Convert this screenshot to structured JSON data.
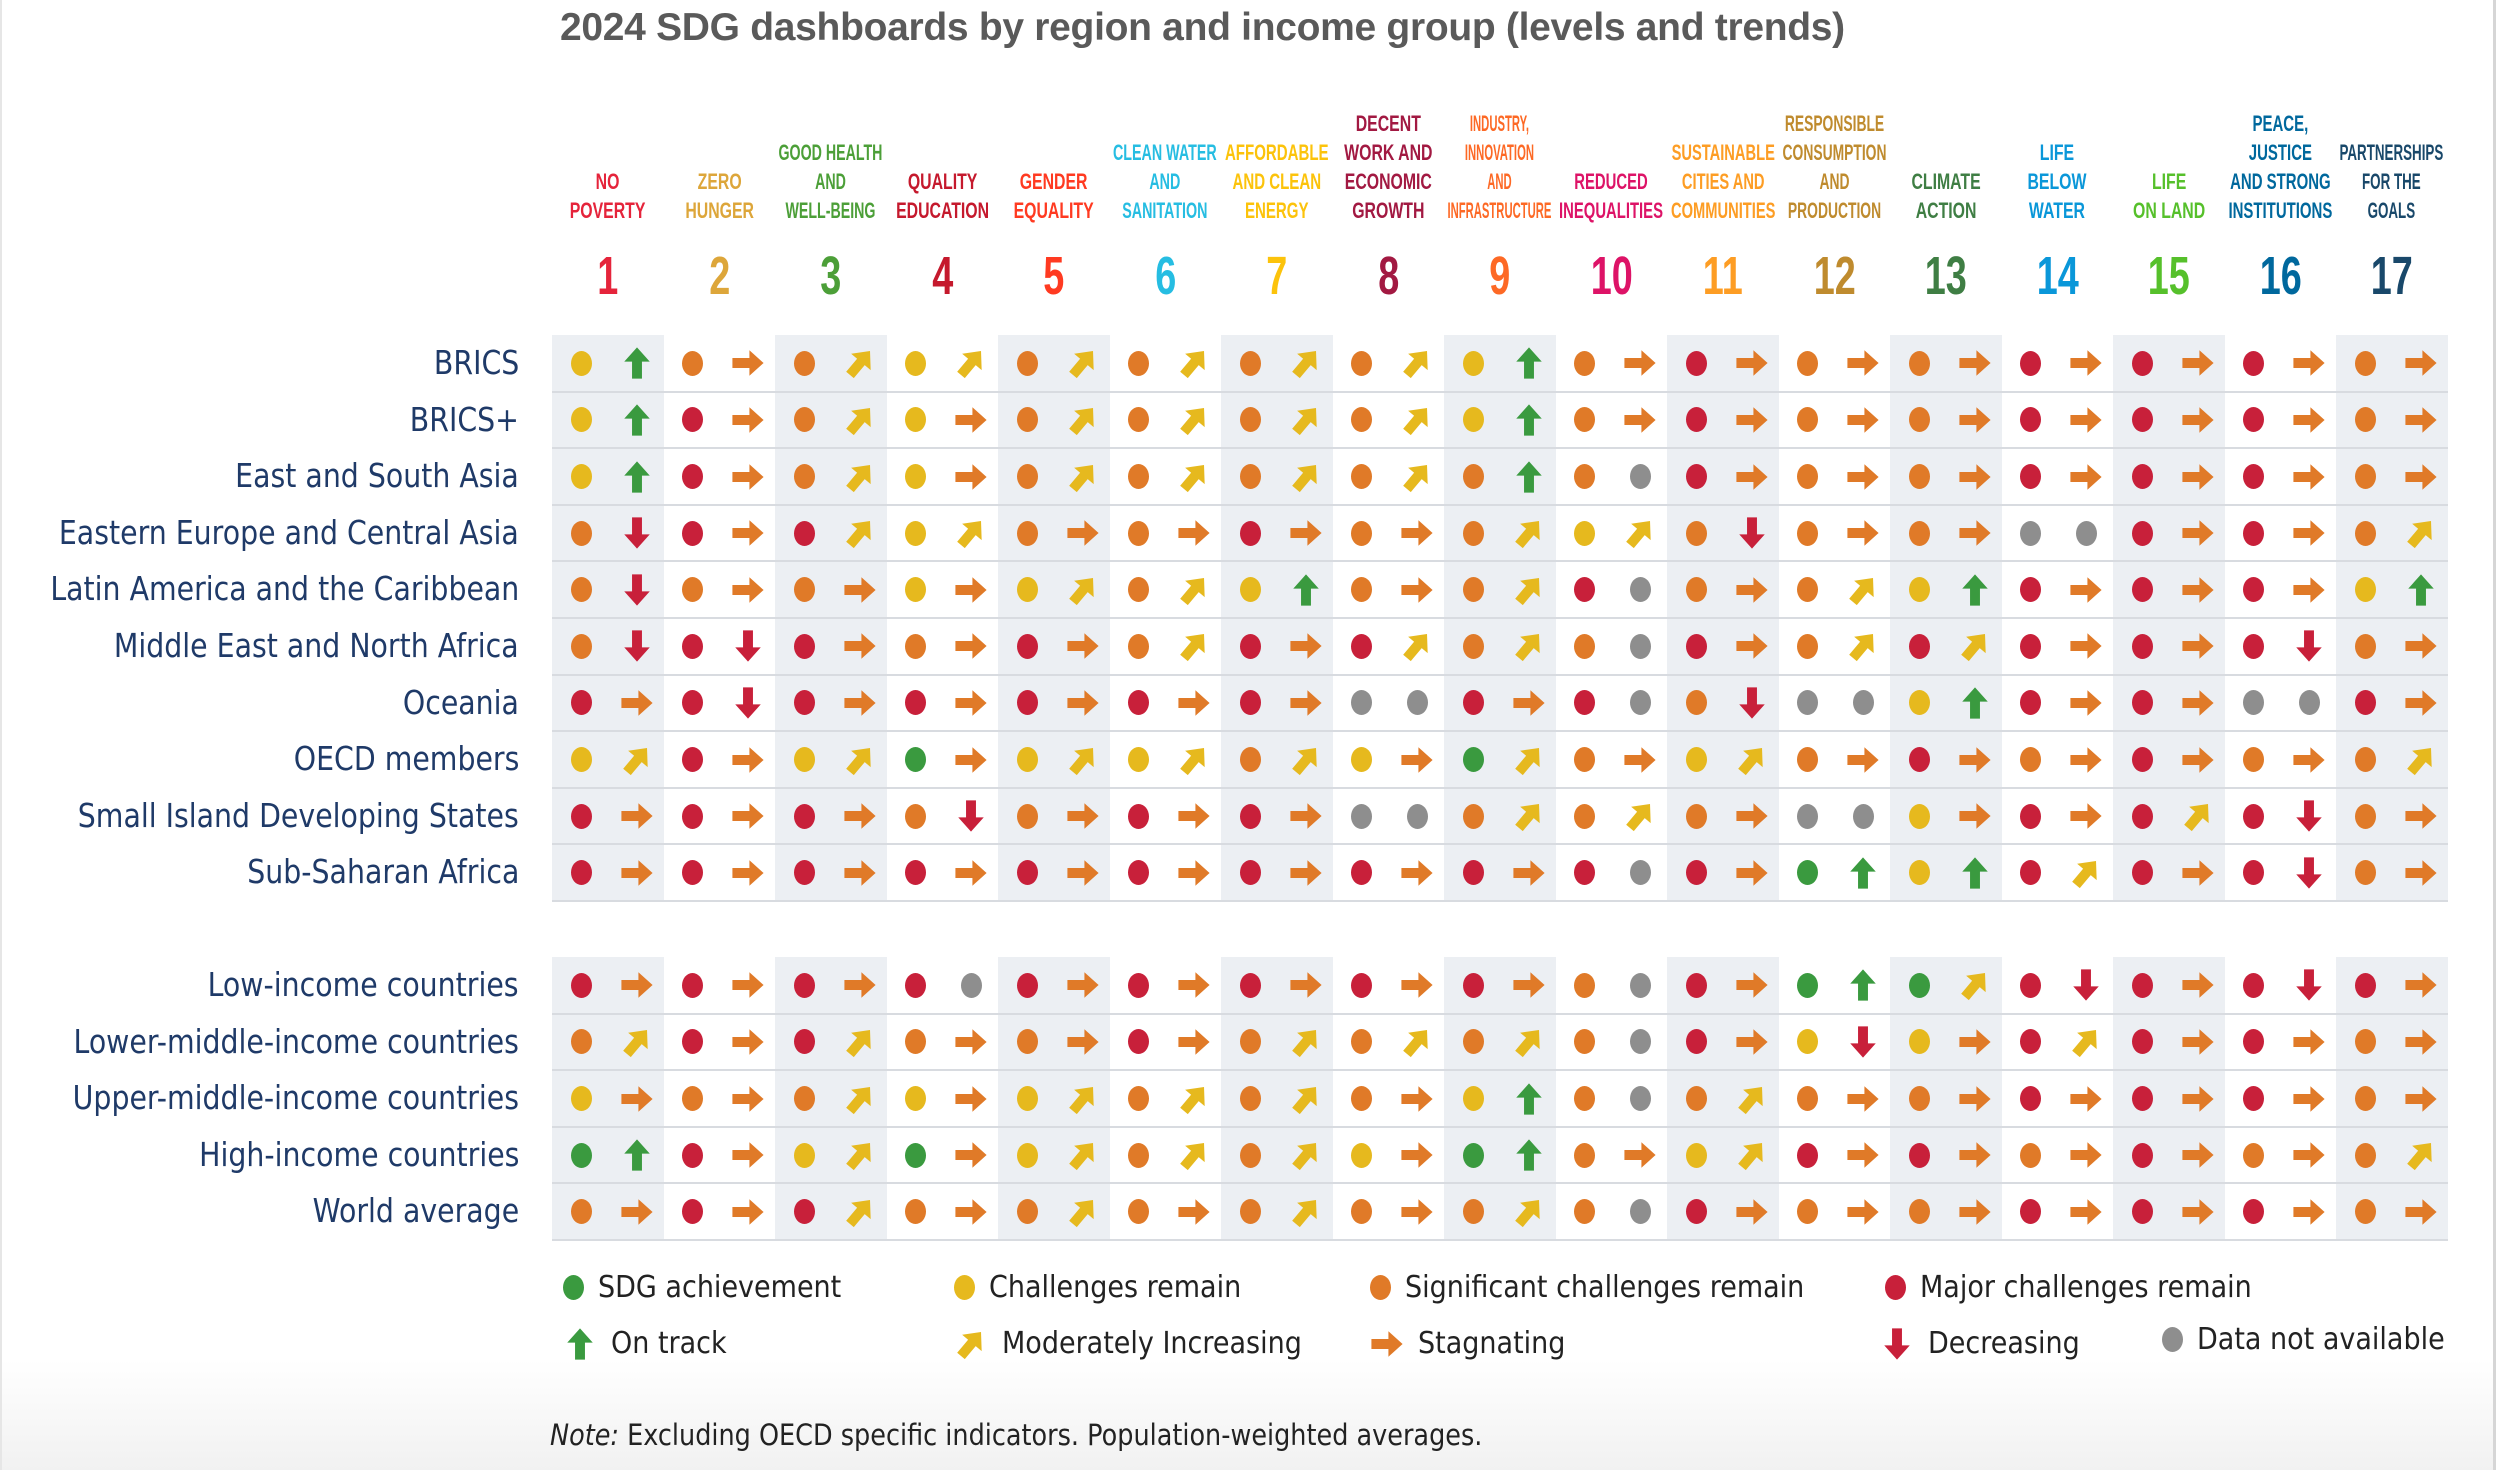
{
  "chart_data": {
    "type": "table",
    "title": "2024 SDG dashboards by region and income group (levels and trends)",
    "goals": [
      {
        "number": "1",
        "label": "NO\nPOVERTY",
        "color": "#e5243b"
      },
      {
        "number": "2",
        "label": "ZERO\nHUNGER",
        "color": "#dda63a"
      },
      {
        "number": "3",
        "label": "GOOD HEALTH\nAND\nWELL-BEING",
        "color": "#4c9f38"
      },
      {
        "number": "4",
        "label": "QUALITY\nEDUCATION",
        "color": "#c5192d"
      },
      {
        "number": "5",
        "label": "GENDER\nEQUALITY",
        "color": "#ff3a21"
      },
      {
        "number": "6",
        "label": "CLEAN WATER\nAND\nSANITATION",
        "color": "#26bde2"
      },
      {
        "number": "7",
        "label": "AFFORDABLE\nAND CLEAN\nENERGY",
        "color": "#fcc30b"
      },
      {
        "number": "8",
        "label": "DECENT\nWORK AND\nECONOMIC\nGROWTH",
        "color": "#a21942"
      },
      {
        "number": "9",
        "label": "INDUSTRY,\nINNOVATION\nAND\nINFRASTRUCTURE",
        "color": "#fd6925"
      },
      {
        "number": "10",
        "label": "REDUCED\nINEQUALITIES",
        "color": "#dd1367"
      },
      {
        "number": "11",
        "label": "SUSTAINABLE\nCITIES AND\nCOMMUNITIES",
        "color": "#fd9d24"
      },
      {
        "number": "12",
        "label": "RESPONSIBLE\nCONSUMPTION\nAND\nPRODUCTION",
        "color": "#bf8b2e"
      },
      {
        "number": "13",
        "label": "CLIMATE\nACTION",
        "color": "#3f7e44"
      },
      {
        "number": "14",
        "label": "LIFE\nBELOW\nWATER",
        "color": "#0a97d9"
      },
      {
        "number": "15",
        "label": "LIFE\nON LAND",
        "color": "#56c02b"
      },
      {
        "number": "16",
        "label": "PEACE,\nJUSTICE\nAND STRONG\nINSTITUTIONS",
        "color": "#00689d"
      },
      {
        "number": "17",
        "label": "PARTNERSHIPS\nFOR THE\nGOALS",
        "color": "#19486a"
      }
    ],
    "status_codes": {
      "G": "SDG achievement",
      "Y": "Challenges remain",
      "O": "Significant challenges remain",
      "R": "Major challenges remain",
      "N": "Data not available"
    },
    "trend_codes": {
      "up": "On track",
      "mod": "Moderately Increasing",
      "right": "Stagnating",
      "down": "Decreasing",
      "na": "Data not available"
    },
    "groups": [
      {
        "rows": [
          {
            "name": "BRICS",
            "cells": [
              "Y:up",
              "O:right",
              "O:mod",
              "Y:mod",
              "O:mod",
              "O:mod",
              "O:mod",
              "O:mod",
              "Y:up",
              "O:right",
              "R:right",
              "O:right",
              "O:right",
              "R:right",
              "R:right",
              "R:right",
              "O:right"
            ]
          },
          {
            "name": "BRICS+",
            "cells": [
              "Y:up",
              "R:right",
              "O:mod",
              "Y:right",
              "O:mod",
              "O:mod",
              "O:mod",
              "O:mod",
              "Y:up",
              "O:right",
              "R:right",
              "O:right",
              "O:right",
              "R:right",
              "R:right",
              "R:right",
              "O:right"
            ]
          },
          {
            "name": "East and South Asia",
            "cells": [
              "Y:up",
              "R:right",
              "O:mod",
              "Y:right",
              "O:mod",
              "O:mod",
              "O:mod",
              "O:mod",
              "O:up",
              "O:na",
              "R:right",
              "O:right",
              "O:right",
              "R:right",
              "R:right",
              "R:right",
              "O:right"
            ]
          },
          {
            "name": "Eastern Europe and Central Asia",
            "cells": [
              "O:down",
              "R:right",
              "R:mod",
              "Y:mod",
              "O:right",
              "O:right",
              "R:right",
              "O:right",
              "O:mod",
              "Y:mod",
              "O:down",
              "O:right",
              "O:right",
              "N:na",
              "R:right",
              "R:right",
              "O:mod"
            ]
          },
          {
            "name": "Latin America and the Caribbean",
            "cells": [
              "O:down",
              "O:right",
              "O:right",
              "Y:right",
              "Y:mod",
              "O:mod",
              "Y:up",
              "O:right",
              "O:mod",
              "R:na",
              "O:right",
              "O:mod",
              "Y:up",
              "R:right",
              "R:right",
              "R:right",
              "Y:up"
            ]
          },
          {
            "name": "Middle East and North Africa",
            "cells": [
              "O:down",
              "R:down",
              "R:right",
              "O:right",
              "R:right",
              "O:mod",
              "R:right",
              "R:mod",
              "O:mod",
              "O:na",
              "R:right",
              "O:mod",
              "R:mod",
              "R:right",
              "R:right",
              "R:down",
              "O:right"
            ]
          },
          {
            "name": "Oceania",
            "cells": [
              "R:right",
              "R:down",
              "R:right",
              "R:right",
              "R:right",
              "R:right",
              "R:right",
              "N:na",
              "R:right",
              "R:na",
              "O:down",
              "N:na",
              "Y:up",
              "R:right",
              "R:right",
              "N:na",
              "R:right"
            ]
          },
          {
            "name": "OECD members",
            "cells": [
              "Y:mod",
              "R:right",
              "Y:mod",
              "G:right",
              "Y:mod",
              "Y:mod",
              "O:mod",
              "Y:right",
              "G:mod",
              "O:right",
              "Y:mod",
              "O:right",
              "R:right",
              "O:right",
              "R:right",
              "O:right",
              "O:mod"
            ]
          },
          {
            "name": "Small Island Developing States",
            "cells": [
              "R:right",
              "R:right",
              "R:right",
              "O:down",
              "O:right",
              "R:right",
              "R:right",
              "N:na",
              "O:mod",
              "O:mod",
              "O:right",
              "N:na",
              "Y:right",
              "R:right",
              "R:mod",
              "R:down",
              "O:right"
            ]
          },
          {
            "name": "Sub-Saharan Africa",
            "cells": [
              "R:right",
              "R:right",
              "R:right",
              "R:right",
              "R:right",
              "R:right",
              "R:right",
              "R:right",
              "R:right",
              "R:na",
              "R:right",
              "G:up",
              "Y:up",
              "R:mod",
              "R:right",
              "R:down",
              "O:right"
            ]
          }
        ]
      },
      {
        "rows": [
          {
            "name": "Low-income countries",
            "cells": [
              "R:right",
              "R:right",
              "R:right",
              "R:na",
              "R:right",
              "R:right",
              "R:right",
              "R:right",
              "R:right",
              "O:na",
              "R:right",
              "G:up",
              "G:mod",
              "R:down",
              "R:right",
              "R:down",
              "R:right"
            ]
          },
          {
            "name": "Lower-middle-income countries",
            "cells": [
              "O:mod",
              "R:right",
              "R:mod",
              "O:right",
              "O:right",
              "R:right",
              "O:mod",
              "O:mod",
              "O:mod",
              "O:na",
              "R:right",
              "Y:down",
              "Y:right",
              "R:mod",
              "R:right",
              "R:right",
              "O:right"
            ]
          },
          {
            "name": "Upper-middle-income countries",
            "cells": [
              "Y:right",
              "O:right",
              "O:mod",
              "Y:right",
              "Y:mod",
              "O:mod",
              "O:mod",
              "O:right",
              "Y:up",
              "O:na",
              "O:mod",
              "O:right",
              "O:right",
              "R:right",
              "R:right",
              "R:right",
              "O:right"
            ]
          },
          {
            "name": "High-income countries",
            "cells": [
              "G:up",
              "R:right",
              "Y:mod",
              "G:right",
              "Y:mod",
              "O:mod",
              "O:mod",
              "Y:right",
              "G:up",
              "O:right",
              "Y:mod",
              "R:right",
              "R:right",
              "O:right",
              "R:right",
              "O:right",
              "O:mod"
            ]
          },
          {
            "name": "World average",
            "cells": [
              "O:right",
              "R:right",
              "R:mod",
              "O:right",
              "O:mod",
              "O:right",
              "O:mod",
              "O:right",
              "O:mod",
              "O:na",
              "R:right",
              "O:right",
              "O:right",
              "R:right",
              "R:right",
              "R:right",
              "O:right"
            ]
          }
        ]
      }
    ],
    "colors": {
      "G": "#3a9a3f",
      "Y": "#e6b91e",
      "O": "#e07a28",
      "R": "#c8203a",
      "N": "#8e8e8e",
      "up": "#3a9a3f",
      "mod": "#e6b91e",
      "right": "#e07a28",
      "down": "#c8203a"
    },
    "legend": {
      "status": [
        {
          "code": "G",
          "label": "SDG achievement"
        },
        {
          "code": "Y",
          "label": "Challenges remain"
        },
        {
          "code": "O",
          "label": "Significant challenges remain"
        },
        {
          "code": "R",
          "label": "Major challenges remain"
        }
      ],
      "trends": [
        {
          "code": "up",
          "label": "On track"
        },
        {
          "code": "mod",
          "label": "Moderately Increasing"
        },
        {
          "code": "right",
          "label": "Stagnating"
        },
        {
          "code": "down",
          "label": "Decreasing"
        },
        {
          "code": "N",
          "label": "Data not available"
        }
      ]
    },
    "note_prefix": "Note:",
    "note": " Excluding OECD specific indicators. Population-weighted averages."
  }
}
